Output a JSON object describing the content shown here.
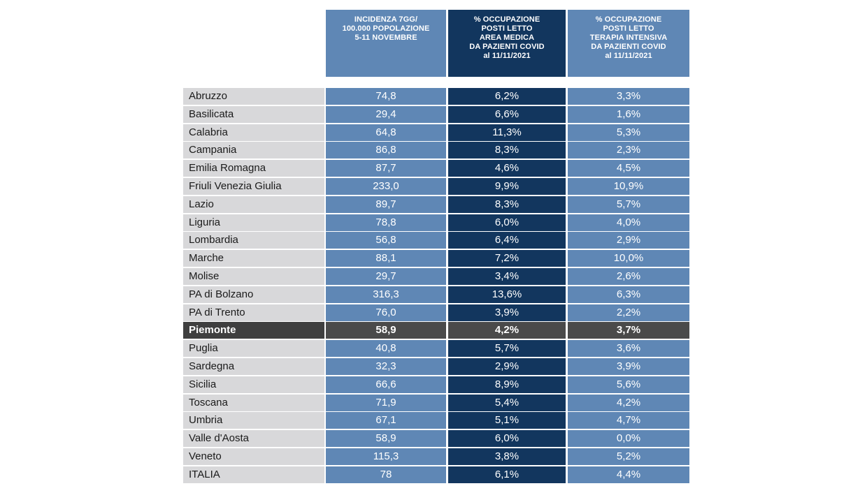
{
  "headers": {
    "col1": [
      "INCIDENZA 7GG/",
      "100.000 POPOLAZIONE",
      "5-11 NOVEMBRE"
    ],
    "col2": [
      "% OCCUPAZIONE",
      "POSTI LETTO",
      "AREA MEDICA",
      "DA PAZIENTI COVID",
      "al 11/11/2021"
    ],
    "col3": [
      "% OCCUPAZIONE",
      "POSTI LETTO",
      "TERAPIA INTENSIVA",
      "DA PAZIENTI COVID",
      "al 11/11/2021"
    ]
  },
  "highlight_region": "Piemonte",
  "colors": {
    "light_blue": "#5f87b5",
    "dark_blue": "#12365e",
    "region_grey": "#d8d8da",
    "highlight_grey": "#4a4a4a"
  },
  "rows": [
    {
      "region": "Abruzzo",
      "incidence": "74,8",
      "medical": "6,2%",
      "icu": "3,3%"
    },
    {
      "region": "Basilicata",
      "incidence": "29,4",
      "medical": "6,6%",
      "icu": "1,6%"
    },
    {
      "region": "Calabria",
      "incidence": "64,8",
      "medical": "11,3%",
      "icu": "5,3%"
    },
    {
      "region": "Campania",
      "incidence": "86,8",
      "medical": "8,3%",
      "icu": "2,3%"
    },
    {
      "region": "Emilia Romagna",
      "incidence": "87,7",
      "medical": "4,6%",
      "icu": "4,5%"
    },
    {
      "region": "Friuli Venezia Giulia",
      "incidence": "233,0",
      "medical": "9,9%",
      "icu": "10,9%"
    },
    {
      "region": "Lazio",
      "incidence": "89,7",
      "medical": "8,3%",
      "icu": "5,7%"
    },
    {
      "region": "Liguria",
      "incidence": "78,8",
      "medical": "6,0%",
      "icu": "4,0%"
    },
    {
      "region": "Lombardia",
      "incidence": "56,8",
      "medical": "6,4%",
      "icu": "2,9%"
    },
    {
      "region": "Marche",
      "incidence": "88,1",
      "medical": "7,2%",
      "icu": "10,0%"
    },
    {
      "region": "Molise",
      "incidence": "29,7",
      "medical": "3,4%",
      "icu": "2,6%"
    },
    {
      "region": "PA di Bolzano",
      "incidence": "316,3",
      "medical": "13,6%",
      "icu": "6,3%"
    },
    {
      "region": "PA di Trento",
      "incidence": "76,0",
      "medical": "3,9%",
      "icu": "2,2%"
    },
    {
      "region": "Piemonte",
      "incidence": "58,9",
      "medical": "4,2%",
      "icu": "3,7%"
    },
    {
      "region": "Puglia",
      "incidence": "40,8",
      "medical": "5,7%",
      "icu": "3,6%"
    },
    {
      "region": "Sardegna",
      "incidence": "32,3",
      "medical": "2,9%",
      "icu": "3,9%"
    },
    {
      "region": "Sicilia",
      "incidence": "66,6",
      "medical": "8,9%",
      "icu": "5,6%"
    },
    {
      "region": "Toscana",
      "incidence": "71,9",
      "medical": "5,4%",
      "icu": "4,2%"
    },
    {
      "region": "Umbria",
      "incidence": "67,1",
      "medical": "5,1%",
      "icu": "4,7%"
    },
    {
      "region": "Valle d'Aosta",
      "incidence": "58,9",
      "medical": "6,0%",
      "icu": "0,0%"
    },
    {
      "region": "Veneto",
      "incidence": "115,3",
      "medical": "3,8%",
      "icu": "5,2%"
    },
    {
      "region": "ITALIA",
      "incidence": "78",
      "medical": "6,1%",
      "icu": "4,4%"
    }
  ]
}
